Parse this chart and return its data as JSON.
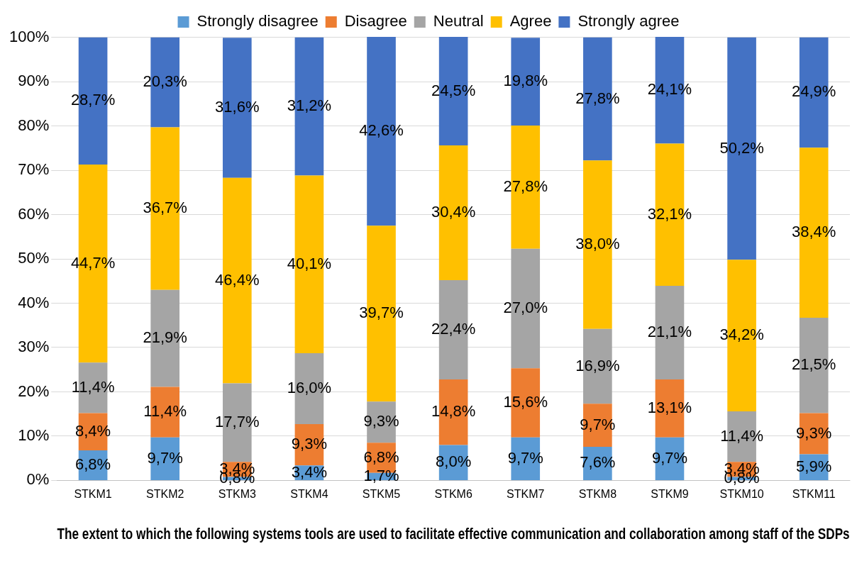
{
  "chart_data": {
    "type": "bar",
    "stacked": true,
    "xlabel": "The extent to which the following systems tools are used to facilitate effective communication and collaboration among staff of the SDPs",
    "categories": [
      "STKM1",
      "STKM2",
      "STKM3",
      "STKM4",
      "STKM5",
      "STKM6",
      "STKM7",
      "STKM8",
      "STKM9",
      "STKM10",
      "STKM11"
    ],
    "series": [
      {
        "name": "Strongly disagree",
        "color": "#5b9bd5",
        "values": [
          6.8,
          9.7,
          0.8,
          3.4,
          1.7,
          8.0,
          9.7,
          7.6,
          9.7,
          0.8,
          5.9
        ],
        "value_labels": [
          "6,8%",
          "9,7%",
          "0,8%",
          "3,4%",
          "1,7%",
          "8,0%",
          "9,7%",
          "7,6%",
          "9,7%",
          "0,8%",
          "5,9%"
        ]
      },
      {
        "name": "Disagree",
        "color": "#ed7d31",
        "values": [
          8.4,
          11.4,
          3.4,
          9.3,
          6.8,
          14.8,
          15.6,
          9.7,
          13.1,
          3.4,
          9.3
        ],
        "value_labels": [
          "8,4%",
          "11,4%",
          "3,4%",
          "9,3%",
          "6,8%",
          "14,8%",
          "15,6%",
          "9,7%",
          "13,1%",
          "3,4%",
          "9,3%"
        ]
      },
      {
        "name": "Neutral",
        "color": "#a5a5a5",
        "values": [
          11.4,
          21.9,
          17.7,
          16.0,
          9.3,
          22.4,
          27.0,
          16.9,
          21.1,
          11.4,
          21.5
        ],
        "value_labels": [
          "11,4%",
          "21,9%",
          "17,7%",
          "16,0%",
          "9,3%",
          "22,4%",
          "27,0%",
          "16,9%",
          "21,1%",
          "11,4%",
          "21,5%"
        ]
      },
      {
        "name": "Agree",
        "color": "#ffc000",
        "values": [
          44.7,
          36.7,
          46.4,
          40.1,
          39.7,
          30.4,
          27.8,
          38.0,
          32.1,
          34.2,
          38.4
        ],
        "value_labels": [
          "44,7%",
          "36,7%",
          "46,4%",
          "40,1%",
          "39,7%",
          "30,4%",
          "27,8%",
          "38,0%",
          "32,1%",
          "34,2%",
          "38,4%"
        ]
      },
      {
        "name": "Strongly agree",
        "color": "#4472c4",
        "values": [
          28.7,
          20.3,
          31.6,
          31.2,
          42.6,
          24.5,
          19.8,
          27.8,
          24.1,
          50.2,
          24.9
        ],
        "value_labels": [
          "28,7%",
          "20,3%",
          "31,6%",
          "31,2%",
          "42,6%",
          "24,5%",
          "19,8%",
          "27,8%",
          "24,1%",
          "50,2%",
          "24,9%"
        ]
      }
    ],
    "ylim": [
      0,
      100.1
    ],
    "yticks": [
      {
        "value": 0,
        "label": "0%"
      },
      {
        "value": 10,
        "label": "10%"
      },
      {
        "value": 20,
        "label": "20%"
      },
      {
        "value": 30,
        "label": "30%"
      },
      {
        "value": 40,
        "label": "40%"
      },
      {
        "value": 50,
        "label": "50%"
      },
      {
        "value": 60,
        "label": "60%"
      },
      {
        "value": 70,
        "label": "70%"
      },
      {
        "value": 80,
        "label": "80%"
      },
      {
        "value": 90,
        "label": "90%"
      },
      {
        "value": 100,
        "label": "100%"
      }
    ],
    "grid": "y",
    "legend": "top"
  }
}
